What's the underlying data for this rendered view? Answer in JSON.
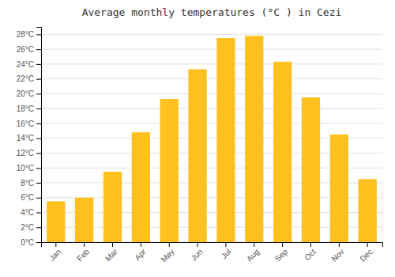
{
  "chart_data": {
    "type": "bar",
    "title": "Average monthly temperatures (°C ) in Cezi",
    "categories": [
      "Jan",
      "Feb",
      "Mar",
      "Apr",
      "May",
      "Jun",
      "Jul",
      "Aug",
      "Sep",
      "Oct",
      "Nov",
      "Dec"
    ],
    "values": [
      5.5,
      6.0,
      9.5,
      14.8,
      19.3,
      23.3,
      27.5,
      27.8,
      24.3,
      19.5,
      14.5,
      8.5
    ],
    "color": "#FFC020",
    "ylim": [
      0,
      29
    ],
    "yticks": [
      {
        "value": 0,
        "label": "0°C"
      },
      {
        "value": 2,
        "label": "2°C"
      },
      {
        "value": 4,
        "label": "4°C"
      },
      {
        "value": 6,
        "label": "6°C"
      },
      {
        "value": 8,
        "label": "8°C"
      },
      {
        "value": 10,
        "label": "10°C"
      },
      {
        "value": 12,
        "label": "12°C"
      },
      {
        "value": 14,
        "label": "14°C"
      },
      {
        "value": 16,
        "label": "16°C"
      },
      {
        "value": 18,
        "label": "18°C"
      },
      {
        "value": 20,
        "label": "20°C"
      },
      {
        "value": 22,
        "label": "22°C"
      },
      {
        "value": 24,
        "label": "24°C"
      },
      {
        "value": 26,
        "label": "26°C"
      },
      {
        "value": 28,
        "label": "28°C"
      }
    ],
    "grid": true
  }
}
